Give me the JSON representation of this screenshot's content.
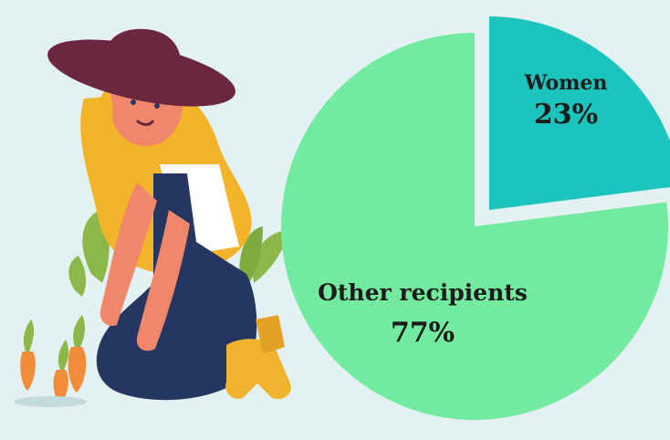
{
  "chart_data": {
    "type": "pie",
    "title": "",
    "categories": [
      "Women",
      "Other recipients"
    ],
    "values": [
      23,
      77
    ],
    "labels": [
      "23%",
      "77%"
    ],
    "exploded": [
      "Women"
    ],
    "colors": {
      "Women": "#1bc4bc",
      "Other recipients": "#72ea9f"
    }
  },
  "illustration": {
    "subject": "woman-gardener-icon",
    "colors": {
      "hat": "#6b2640",
      "hair": "#f4b42a",
      "skin": "#f0876a",
      "overalls": "#253660",
      "shirt": "#ffffff",
      "boots": "#f0b32e",
      "leaves": "#8cb84a",
      "carrots": "#f08c3a"
    }
  }
}
